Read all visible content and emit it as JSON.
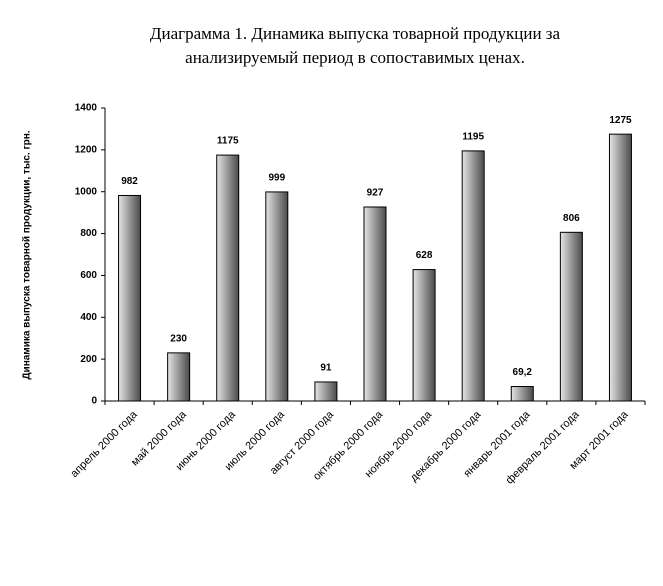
{
  "chart_data": {
    "type": "bar",
    "title": [
      "Диаграмма 1. Динамика выпуска товарной продукции за",
      "анализируемый период в сопоставимых ценах."
    ],
    "y_label": "Динамика выпуска товарной продукции, тыс. грн.",
    "categories": [
      "апрель 2000 года",
      "май 2000 года",
      "июнь 2000 года",
      "июль 2000 года",
      "август 2000 года",
      "октябрь 2000 года",
      "ноябрь 2000 года",
      "декабрь 2000 года",
      "январь 2001 года",
      "февраль 2001 года",
      "март 2001 года"
    ],
    "values": [
      982,
      230,
      1175,
      999,
      91,
      927,
      628,
      1195,
      69.2,
      806,
      1275
    ],
    "value_labels": [
      "982",
      "230",
      "1175",
      "999",
      "91",
      "927",
      "628",
      "1195",
      "69,2",
      "806",
      "1275"
    ],
    "color": [
      "#e4e4e4",
      "#4a4a4a"
    ],
    "ylim": [
      0,
      1400
    ],
    "yticks": [
      0,
      200,
      400,
      600,
      800,
      1000,
      1200,
      1400
    ],
    "grid": false
  }
}
